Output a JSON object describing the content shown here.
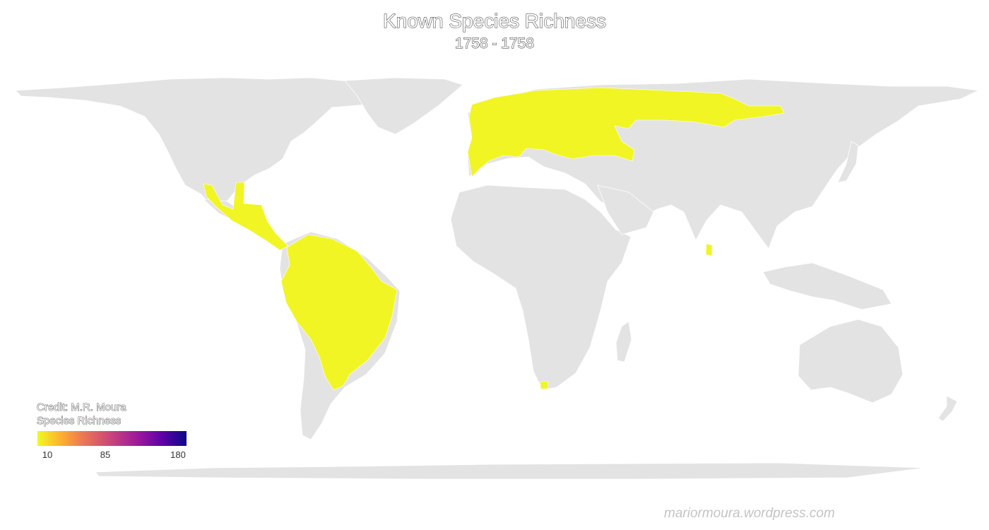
{
  "title": "Known Species Richness",
  "subtitle": "1758 - 1758",
  "credit": "Credit: M.R. Moura",
  "legend": {
    "title": "Species Richness",
    "ticks": [
      "10",
      "85",
      "180"
    ],
    "min": 10,
    "max": 180,
    "palette": "plasma"
  },
  "watermark": "mariormoura.wordpress.com",
  "colors": {
    "land": "#e3e3e3",
    "background": "#ffffff",
    "richness_low": "#f0f921",
    "richness_high": "#0d0887",
    "borders": "#ffffff"
  }
}
